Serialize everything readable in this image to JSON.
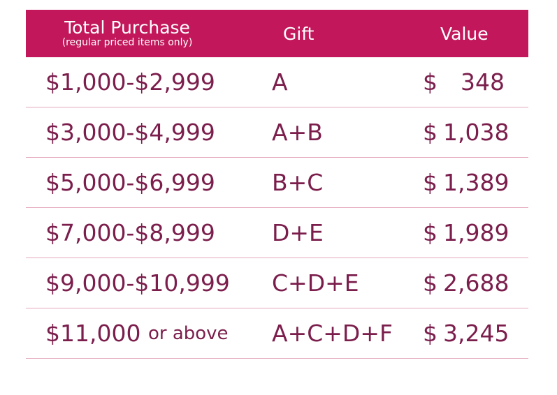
{
  "header": {
    "total_title": "Total Purchase",
    "total_subtitle": "(regular priced items only)",
    "gift": "Gift",
    "value": "Value"
  },
  "rows": [
    {
      "total": "$1,000-$2,999",
      "total_suffix": "",
      "gift": "A",
      "currency": "$",
      "value": "348"
    },
    {
      "total": "$3,000-$4,999",
      "total_suffix": "",
      "gift": "A+B",
      "currency": "$",
      "value": "1,038"
    },
    {
      "total": "$5,000-$6,999",
      "total_suffix": "",
      "gift": "B+C",
      "currency": "$",
      "value": "1,389"
    },
    {
      "total": "$7,000-$8,999",
      "total_suffix": "",
      "gift": "D+E",
      "currency": "$",
      "value": "1,989"
    },
    {
      "total": "$9,000-$10,999",
      "total_suffix": "",
      "gift": "C+D+E",
      "currency": "$",
      "value": "2,688"
    },
    {
      "total": "$11,000",
      "total_suffix": "or above",
      "gift": "A+C+D+F",
      "currency": "$",
      "value": "3,245"
    }
  ],
  "colors": {
    "header_bg": "#c2185b",
    "header_text": "#ffffff",
    "row_text": "#7b1e4c",
    "divider": "#e3a7bb"
  }
}
